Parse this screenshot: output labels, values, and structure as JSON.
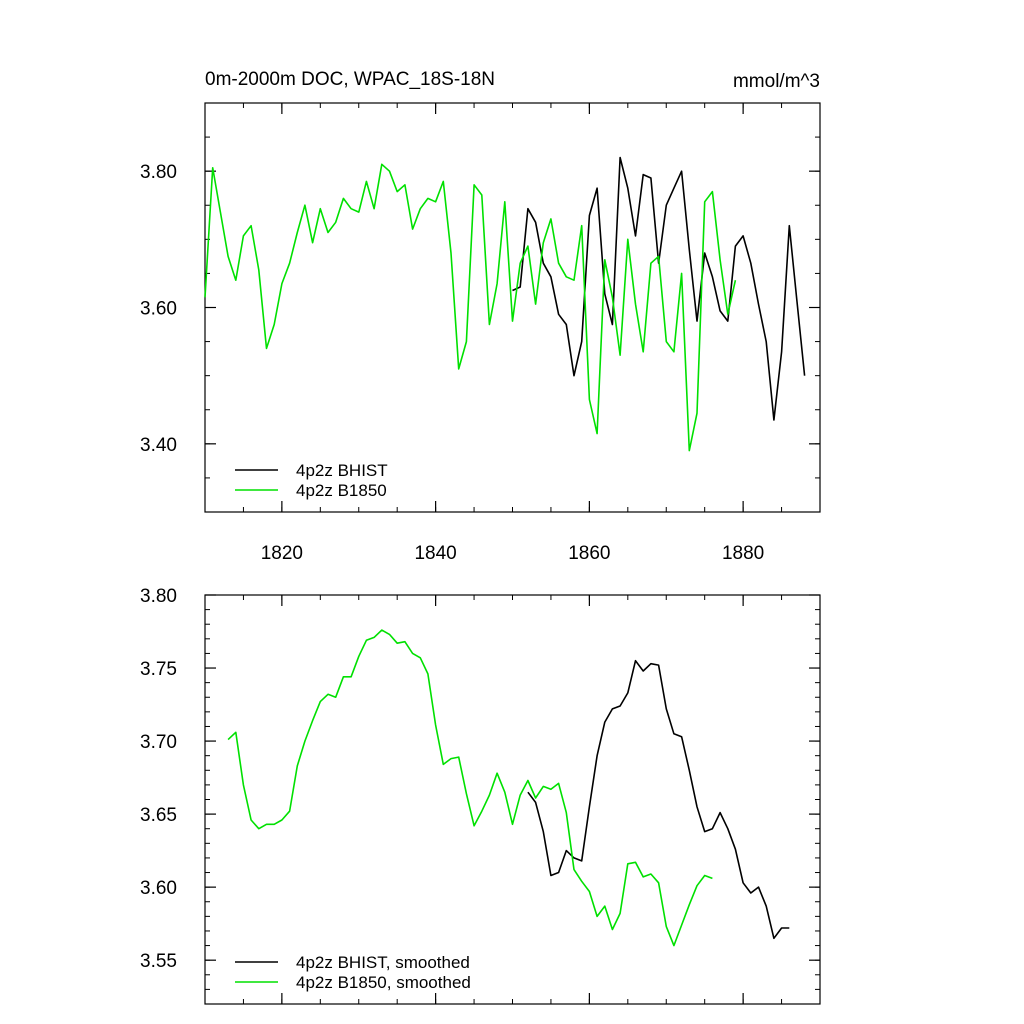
{
  "chart_data": [
    {
      "type": "line",
      "title": "0m-2000m DOC, WPAC_18S-18N",
      "units": "mmol/m^3",
      "xlim": [
        1810,
        1890
      ],
      "ylim": [
        3.3,
        3.9
      ],
      "x_ticks": [
        1820,
        1840,
        1860,
        1880
      ],
      "y_ticks": [
        3.4,
        3.6,
        3.8
      ],
      "y_tick_labels": [
        "3.40",
        "3.60",
        "3.80"
      ],
      "x_tick_labels": [
        "1820",
        "1840",
        "1860",
        "1880"
      ],
      "legend_position": "bottom-left",
      "grid": false,
      "series": [
        {
          "name": "4p2z BHIST",
          "color": "#000000",
          "x": [
            1850,
            1851,
            1852,
            1853,
            1854,
            1855,
            1856,
            1857,
            1858,
            1859,
            1860,
            1861,
            1862,
            1863,
            1864,
            1865,
            1866,
            1867,
            1868,
            1869,
            1870,
            1871,
            1872,
            1873,
            1874,
            1875,
            1876,
            1877,
            1878,
            1879,
            1880,
            1881,
            1882,
            1883,
            1884,
            1885,
            1886,
            1887,
            1888
          ],
          "values": [
            3.625,
            3.63,
            3.745,
            3.725,
            3.665,
            3.645,
            3.59,
            3.575,
            3.5,
            3.55,
            3.735,
            3.775,
            3.62,
            3.575,
            3.82,
            3.775,
            3.705,
            3.795,
            3.79,
            3.665,
            3.75,
            3.775,
            3.8,
            3.685,
            3.58,
            3.68,
            3.645,
            3.595,
            3.58,
            3.69,
            3.705,
            3.665,
            3.605,
            3.55,
            3.435,
            3.535,
            3.72,
            3.61,
            3.5
          ]
        },
        {
          "name": "4p2z B1850",
          "color": "#00e000",
          "x": [
            1810,
            1811,
            1812,
            1813,
            1814,
            1815,
            1816,
            1817,
            1818,
            1819,
            1820,
            1821,
            1822,
            1823,
            1824,
            1825,
            1826,
            1827,
            1828,
            1829,
            1830,
            1831,
            1832,
            1833,
            1834,
            1835,
            1836,
            1837,
            1838,
            1839,
            1840,
            1841,
            1842,
            1843,
            1844,
            1845,
            1846,
            1847,
            1848,
            1849,
            1850,
            1851,
            1852,
            1853,
            1854,
            1855,
            1856,
            1857,
            1858,
            1859,
            1860,
            1861,
            1862,
            1863,
            1864,
            1865,
            1866,
            1867,
            1868,
            1869,
            1870,
            1871,
            1872,
            1873,
            1874,
            1875,
            1876,
            1877,
            1878,
            1879
          ],
          "values": [
            3.615,
            3.805,
            3.74,
            3.675,
            3.64,
            3.705,
            3.72,
            3.655,
            3.54,
            3.575,
            3.635,
            3.665,
            3.71,
            3.75,
            3.695,
            3.745,
            3.71,
            3.725,
            3.76,
            3.745,
            3.74,
            3.785,
            3.745,
            3.81,
            3.8,
            3.77,
            3.78,
            3.715,
            3.745,
            3.76,
            3.755,
            3.785,
            3.68,
            3.51,
            3.55,
            3.78,
            3.765,
            3.575,
            3.635,
            3.755,
            3.58,
            3.665,
            3.69,
            3.605,
            3.695,
            3.73,
            3.665,
            3.645,
            3.64,
            3.72,
            3.465,
            3.415,
            3.67,
            3.615,
            3.53,
            3.7,
            3.605,
            3.535,
            3.665,
            3.675,
            3.55,
            3.535,
            3.65,
            3.39,
            3.445,
            3.755,
            3.77,
            3.67,
            3.59,
            3.64
          ]
        }
      ]
    },
    {
      "type": "line",
      "title": "",
      "xlim": [
        1810,
        1890
      ],
      "ylim": [
        3.52,
        3.8
      ],
      "x_ticks": [
        1820,
        1840,
        1860,
        1880
      ],
      "y_ticks": [
        3.55,
        3.6,
        3.65,
        3.7,
        3.75,
        3.8
      ],
      "y_tick_labels": [
        "3.55",
        "3.60",
        "3.65",
        "3.70",
        "3.75",
        "3.80"
      ],
      "legend_position": "bottom-left",
      "grid": false,
      "series": [
        {
          "name": "4p2z BHIST, smoothed",
          "color": "#000000",
          "x": [
            1852,
            1853,
            1854,
            1855,
            1856,
            1857,
            1858,
            1859,
            1860,
            1861,
            1862,
            1863,
            1864,
            1865,
            1866,
            1867,
            1868,
            1869,
            1870,
            1871,
            1872,
            1873,
            1874,
            1875,
            1876,
            1877,
            1878,
            1879,
            1880,
            1881,
            1882,
            1883,
            1884,
            1885,
            1886
          ],
          "values": [
            3.665,
            3.658,
            3.638,
            3.608,
            3.61,
            3.625,
            3.62,
            3.618,
            3.655,
            3.69,
            3.713,
            3.722,
            3.724,
            3.733,
            3.755,
            3.748,
            3.753,
            3.752,
            3.722,
            3.705,
            3.703,
            3.68,
            3.655,
            3.638,
            3.64,
            3.651,
            3.64,
            3.626,
            3.603,
            3.596,
            3.6,
            3.587,
            3.565,
            3.572,
            3.572
          ]
        },
        {
          "name": "4p2z B1850, smoothed",
          "color": "#00e000",
          "x": [
            1813,
            1814,
            1815,
            1816,
            1817,
            1818,
            1819,
            1820,
            1821,
            1822,
            1823,
            1824,
            1825,
            1826,
            1827,
            1828,
            1829,
            1830,
            1831,
            1832,
            1833,
            1834,
            1835,
            1836,
            1837,
            1838,
            1839,
            1840,
            1841,
            1842,
            1843,
            1844,
            1845,
            1846,
            1847,
            1848,
            1849,
            1850,
            1851,
            1852,
            1853,
            1854,
            1855,
            1856,
            1857,
            1858,
            1859,
            1860,
            1861,
            1862,
            1863,
            1864,
            1865,
            1866,
            1867,
            1868,
            1869,
            1870,
            1871,
            1872,
            1873,
            1874,
            1875,
            1876
          ],
          "values": [
            3.701,
            3.706,
            3.67,
            3.646,
            3.64,
            3.643,
            3.643,
            3.646,
            3.652,
            3.683,
            3.7,
            3.714,
            3.727,
            3.732,
            3.73,
            3.744,
            3.744,
            3.758,
            3.769,
            3.771,
            3.776,
            3.773,
            3.767,
            3.768,
            3.76,
            3.757,
            3.746,
            3.711,
            3.684,
            3.688,
            3.689,
            3.664,
            3.642,
            3.652,
            3.663,
            3.678,
            3.665,
            3.643,
            3.663,
            3.673,
            3.661,
            3.669,
            3.667,
            3.671,
            3.651,
            3.612,
            3.604,
            3.597,
            3.58,
            3.587,
            3.571,
            3.582,
            3.616,
            3.617,
            3.607,
            3.609,
            3.603,
            3.573,
            3.56,
            3.574,
            3.588,
            3.601,
            3.608,
            3.606
          ]
        }
      ]
    }
  ]
}
